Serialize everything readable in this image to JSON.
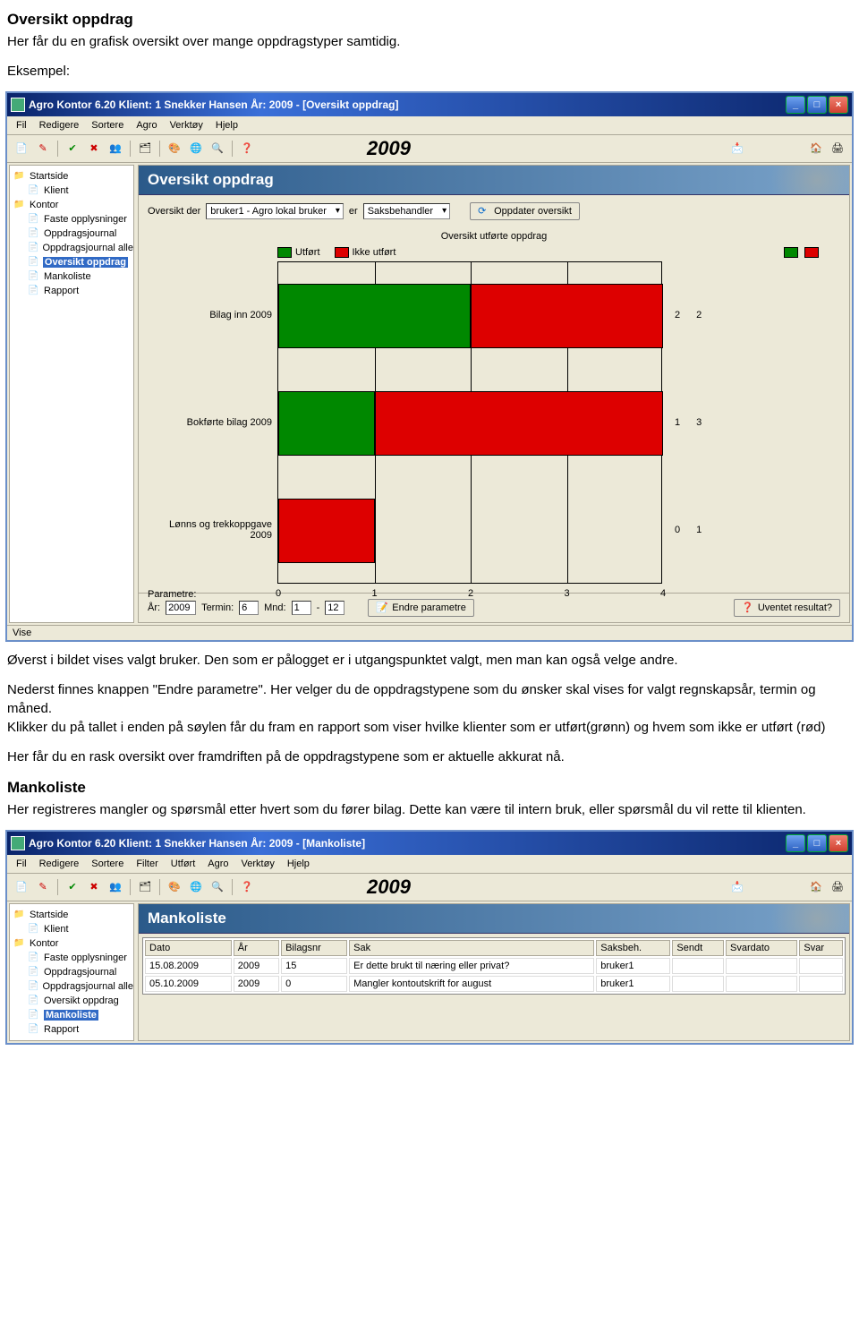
{
  "doc": {
    "title1": "Oversikt oppdrag",
    "line1": "Her får du en grafisk oversikt over mange oppdragstyper samtidig.",
    "eksempel": "Eksempel:",
    "para1a": "Øverst i bildet vises valgt bruker. Den som er pålogget er i utgangspunktet valgt, men man kan også velge andre.",
    "para1b": "Nederst finnes knappen \"Endre parametre\". Her velger du de oppdragstypene som du ønsker skal vises for valgt regnskapsår, termin og måned.",
    "para1c": "Klikker du på tallet i enden på søylen får du fram en rapport som viser hvilke klienter som er utført(grønn) og hvem som ikke er utført (rød)",
    "para2": "Her får du en rask oversikt over framdriften på de oppdragstypene som er aktuelle akkurat nå.",
    "mk_title": "Mankoliste",
    "mk_text": "Her registreres mangler og spørsmål etter hvert som du fører bilag. Dette kan være til intern bruk, eller spørsmål du vil rette til klienten."
  },
  "win1": {
    "title": "Agro Kontor 6.20        Klient:  1  Snekker Hansen      År:  2009 - [Oversikt oppdrag]",
    "menus": [
      "Fil",
      "Redigere",
      "Sortere",
      "Agro",
      "Verktøy",
      "Hjelp"
    ],
    "year": "2009",
    "sidebar": [
      {
        "label": "Startside",
        "root": true
      },
      {
        "label": "Klient",
        "level": 1
      },
      {
        "label": "Kontor",
        "root": true
      },
      {
        "label": "Faste opplysninger",
        "level": 1
      },
      {
        "label": "Oppdragsjournal",
        "level": 1
      },
      {
        "label": "Oppdragsjournal alle",
        "level": 1
      },
      {
        "label": "Oversikt oppdrag",
        "level": 1,
        "selected": true
      },
      {
        "label": "Mankoliste",
        "level": 1
      },
      {
        "label": "Rapport",
        "level": 1
      }
    ],
    "header": "Oversikt oppdrag",
    "filter": {
      "pre": "Oversikt der",
      "user_combo": "bruker1 - Agro lokal bruker",
      "er": "er",
      "role_combo": "Saksbehandler",
      "refresh_btn": "Oppdater oversikt"
    },
    "chart": {
      "title": "Oversikt utførte oppdrag",
      "legend_done": "Utført",
      "legend_notdone": "Ikke utført",
      "done_color": "#008800",
      "notdone_color": "#dd0000",
      "xmax": 4,
      "xticks": [
        0,
        1,
        2,
        3,
        4
      ],
      "rows": [
        {
          "label": "Bilag inn 2009",
          "done": 2,
          "notdone": 2
        },
        {
          "label": "Bokførte bilag 2009",
          "done": 1,
          "notdone": 3
        },
        {
          "label": "Lønns og trekkoppgave 2009",
          "done": 0,
          "notdone": 1
        }
      ]
    },
    "params": {
      "label": "Parametre:",
      "ar": "År:",
      "ar_v": "2009",
      "termin": "Termin:",
      "termin_v": "6",
      "mnd": "Mnd:",
      "mnd_v1": "1",
      "mnd_v2": "12",
      "btn": "Endre parametre",
      "right_btn": "Uventet resultat?"
    },
    "status": "Vise"
  },
  "win2": {
    "title": "Agro Kontor 6.20        Klient:  1  Snekker Hansen      År:  2009 - [Mankoliste]",
    "menus": [
      "Fil",
      "Redigere",
      "Sortere",
      "Filter",
      "Utført",
      "Agro",
      "Verktøy",
      "Hjelp"
    ],
    "year": "2009",
    "sidebar": [
      {
        "label": "Startside",
        "root": true
      },
      {
        "label": "Klient",
        "level": 1
      },
      {
        "label": "Kontor",
        "root": true
      },
      {
        "label": "Faste opplysninger",
        "level": 1
      },
      {
        "label": "Oppdragsjournal",
        "level": 1
      },
      {
        "label": "Oppdragsjournal alle",
        "level": 1
      },
      {
        "label": "Oversikt oppdrag",
        "level": 1
      },
      {
        "label": "Mankoliste",
        "level": 1,
        "selected": true
      },
      {
        "label": "Rapport",
        "level": 1
      }
    ],
    "header": "Mankoliste",
    "columns": [
      "Dato",
      "År",
      "Bilagsnr",
      "Sak",
      "Saksbeh.",
      "Sendt",
      "Svardato",
      "Svar"
    ],
    "rows": [
      [
        "15.08.2009",
        "2009",
        "15",
        "Er dette brukt til næring eller privat?",
        "bruker1",
        "",
        "",
        ""
      ],
      [
        "05.10.2009",
        "2009",
        "0",
        "Mangler kontoutskrift for august",
        "bruker1",
        "",
        "",
        ""
      ]
    ]
  }
}
